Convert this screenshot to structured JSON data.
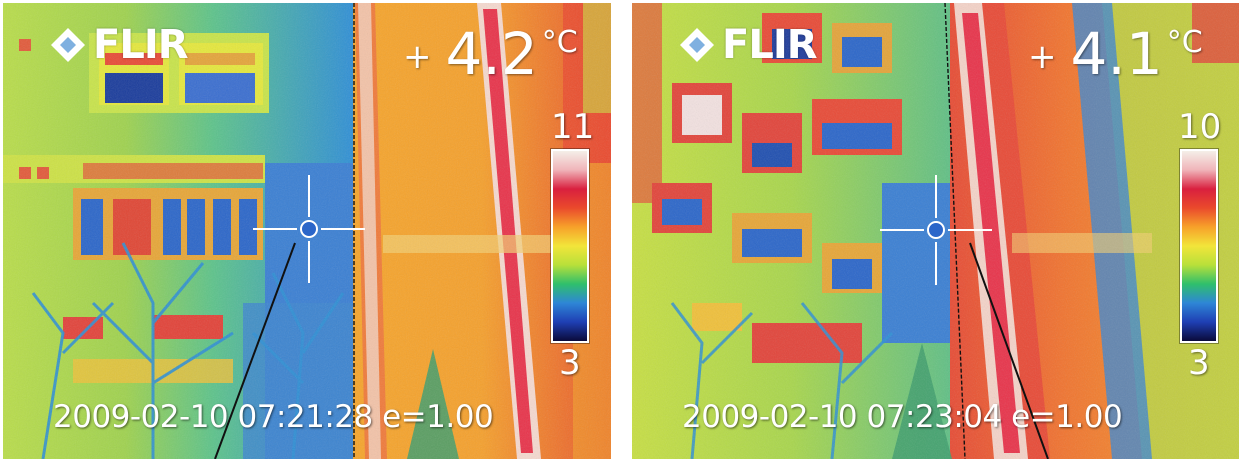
{
  "panels": [
    {
      "logo": "FLIR",
      "spot_temperature": "4.2",
      "temperature_sign": "+",
      "temperature_unit": "°C",
      "scale_max": "11",
      "scale_min": "3",
      "timestamp_line": "2009-02-10 07:21:28 e=1.00"
    },
    {
      "logo": "FLIR",
      "spot_temperature": "4.1",
      "temperature_sign": "+",
      "temperature_unit": "°C",
      "scale_max": "10",
      "scale_min": "3",
      "timestamp_line": "2009-02-10 07:23:04 e=1.00"
    }
  ],
  "palette": [
    "#0a0a3a",
    "#1f3fb4",
    "#2e86d6",
    "#2fbf6b",
    "#b8e03a",
    "#f2e53a",
    "#f7a12a",
    "#ea4a2c",
    "#d9203f",
    "#f0b4b9",
    "#f4efe8"
  ],
  "icons": {
    "logo_mark": "flir-diamond-icon",
    "crosshair": "spot-crosshair-icon"
  }
}
